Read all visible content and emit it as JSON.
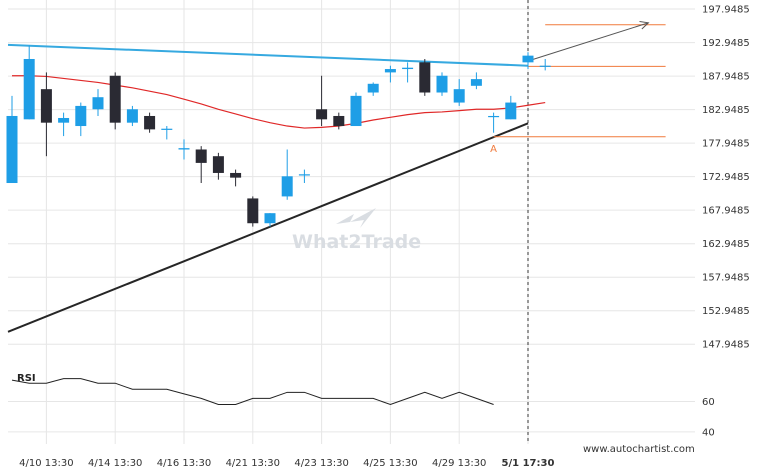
{
  "chart_data": {
    "type": "candlestick",
    "y_ticks": [
      "197.9485",
      "192.9485",
      "187.9485",
      "182.9485",
      "177.9485",
      "172.9485",
      "167.9485",
      "162.9485",
      "157.9485",
      "152.9485",
      "147.9485"
    ],
    "ylim": [
      145.3,
      199.3
    ],
    "x_ticks": [
      {
        "index": 2,
        "label": "4/10 13:30"
      },
      {
        "index": 6,
        "label": "4/14 13:30"
      },
      {
        "index": 10,
        "label": "4/16 13:30"
      },
      {
        "index": 14,
        "label": "4/21 13:30"
      },
      {
        "index": 18,
        "label": "4/23 13:30"
      },
      {
        "index": 22,
        "label": "4/25 13:30"
      },
      {
        "index": 26,
        "label": "4/29 13:30"
      },
      {
        "index": 30,
        "label": "5/1 17:30",
        "bold": true
      }
    ],
    "current_index": 30,
    "colors": {
      "bull": "#1e9ee6",
      "bear": "#2a2a33",
      "resistance": "#36a9e0",
      "support": "#262626",
      "ma": "#e02828",
      "levels": "#f07a3c",
      "projection": "#555555",
      "rsi": "#222222",
      "current_time": "#333333"
    },
    "candles": [
      {
        "o": 172.0,
        "h": 185.0,
        "l": 172.0,
        "c": 182.0
      },
      {
        "o": 181.5,
        "h": 192.5,
        "l": 181.5,
        "c": 190.5
      },
      {
        "o": 186.0,
        "h": 188.5,
        "l": 176.0,
        "c": 181.0
      },
      {
        "o": 181.0,
        "h": 182.5,
        "l": 179.0,
        "c": 181.7
      },
      {
        "o": 180.5,
        "h": 184.0,
        "l": 179.0,
        "c": 183.5
      },
      {
        "o": 183.0,
        "h": 186.0,
        "l": 182.0,
        "c": 184.8
      },
      {
        "o": 188.0,
        "h": 188.5,
        "l": 180.0,
        "c": 181.0
      },
      {
        "o": 181.0,
        "h": 183.5,
        "l": 180.5,
        "c": 183.0
      },
      {
        "o": 182.0,
        "h": 182.5,
        "l": 179.5,
        "c": 180.0
      },
      {
        "o": 180.0,
        "h": 180.5,
        "l": 178.5,
        "c": 180.1
      },
      {
        "o": 177.0,
        "h": 178.5,
        "l": 175.5,
        "c": 177.2
      },
      {
        "o": 177.0,
        "h": 177.5,
        "l": 172.0,
        "c": 175.0
      },
      {
        "o": 176.0,
        "h": 176.5,
        "l": 172.5,
        "c": 173.5
      },
      {
        "o": 173.5,
        "h": 174.0,
        "l": 171.5,
        "c": 172.8
      },
      {
        "o": 169.7,
        "h": 170.0,
        "l": 165.5,
        "c": 166.0
      },
      {
        "o": 166.0,
        "h": 167.5,
        "l": 165.5,
        "c": 167.5
      },
      {
        "o": 170.0,
        "h": 177.0,
        "l": 169.5,
        "c": 173.0
      },
      {
        "o": 173.2,
        "h": 174.0,
        "l": 172.0,
        "c": 173.3
      },
      {
        "o": 183.0,
        "h": 188.0,
        "l": 180.5,
        "c": 181.5
      },
      {
        "o": 182.0,
        "h": 182.5,
        "l": 180.0,
        "c": 180.5
      },
      {
        "o": 180.5,
        "h": 185.5,
        "l": 180.5,
        "c": 185.0
      },
      {
        "o": 185.5,
        "h": 187.0,
        "l": 185.0,
        "c": 186.8
      },
      {
        "o": 188.5,
        "h": 189.5,
        "l": 187.0,
        "c": 189.0
      },
      {
        "o": 189.0,
        "h": 190.0,
        "l": 187.0,
        "c": 189.2
      },
      {
        "o": 190.0,
        "h": 190.5,
        "l": 185.0,
        "c": 185.5
      },
      {
        "o": 185.5,
        "h": 188.5,
        "l": 185.0,
        "c": 188.0
      },
      {
        "o": 184.0,
        "h": 187.5,
        "l": 183.5,
        "c": 186.0
      },
      {
        "o": 186.5,
        "h": 188.5,
        "l": 186.0,
        "c": 187.5
      },
      {
        "o": 182.0,
        "h": 182.5,
        "l": 179.5,
        "c": 182.0
      },
      {
        "o": 181.5,
        "h": 185.0,
        "l": 181.5,
        "c": 184.0
      },
      {
        "o": 190.0,
        "h": 191.5,
        "l": 189.0,
        "c": 191.0
      },
      {
        "o": 189.5,
        "h": 190.5,
        "l": 188.8,
        "c": 189.5
      }
    ],
    "moving_average": [
      188.0,
      188.0,
      187.9,
      187.6,
      187.3,
      187.0,
      186.6,
      186.2,
      185.7,
      185.2,
      184.5,
      183.8,
      183.0,
      182.3,
      181.6,
      181.0,
      180.5,
      180.2,
      180.3,
      180.5,
      180.9,
      181.4,
      181.8,
      182.2,
      182.5,
      182.6,
      182.8,
      183.0,
      183.0,
      183.2,
      183.6,
      184.0
    ],
    "resistance_line": {
      "start": {
        "index": 0,
        "value": 192.6
      },
      "end": {
        "index": 30,
        "value": 189.5
      }
    },
    "support_line": {
      "start": {
        "index": 0,
        "value": 149.8
      },
      "end": {
        "index": 30,
        "value": 180.9
      }
    },
    "levels": [
      {
        "from_index": 31,
        "to_index": 38,
        "value": 195.6
      },
      {
        "from_index": 30,
        "to_index": 38,
        "value": 189.4
      },
      {
        "from_index": 28,
        "to_index": 38,
        "value": 178.9
      }
    ],
    "point_label": {
      "text": "A",
      "index": 28,
      "value": 177.8
    },
    "projection": {
      "start": {
        "index": 30,
        "value": 190.2
      },
      "end": {
        "index": 37,
        "value": 195.9
      }
    },
    "rsi": {
      "title": "RSI",
      "ticks": [
        "60",
        "40"
      ],
      "ylim": [
        32,
        82
      ],
      "values": [
        74,
        72,
        72,
        75,
        75,
        72,
        72,
        68,
        68,
        68,
        65,
        62,
        58,
        58,
        62,
        62,
        66,
        66,
        62,
        62,
        62,
        62,
        58,
        62,
        66,
        62,
        66,
        62,
        58
      ]
    },
    "credit": "www.autochartist.com",
    "watermark": "What2Trade"
  }
}
